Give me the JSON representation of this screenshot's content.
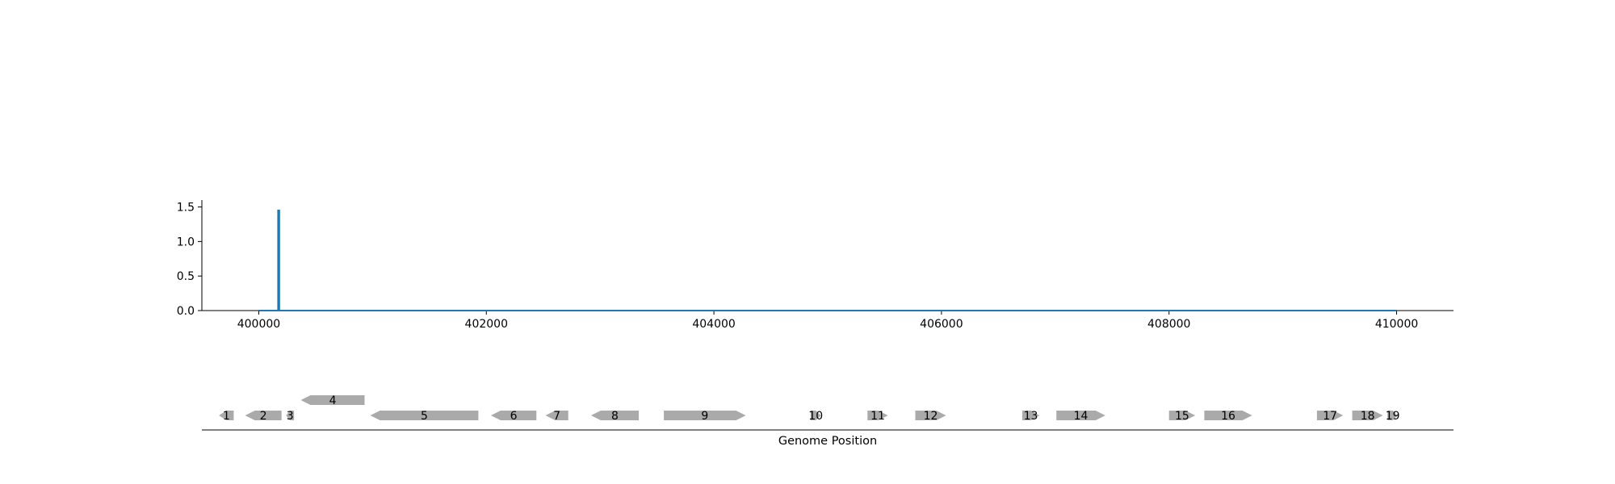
{
  "chart_data": {
    "type": "line",
    "xlim": [
      399500,
      410500
    ],
    "ylim": [
      0,
      1.6
    ],
    "x_ticks": [
      400000,
      402000,
      404000,
      406000,
      408000,
      410000
    ],
    "x_tick_labels": [
      "400000",
      "402000",
      "404000",
      "406000",
      "408000",
      "410000"
    ],
    "y_ticks": [
      0.0,
      0.5,
      1.0,
      1.5
    ],
    "y_tick_labels": [
      "0.0",
      "0.5",
      "1.0",
      "1.5"
    ],
    "series": [
      {
        "color": "#1f77b4",
        "x": [
          400000,
          400170,
          400170,
          400180,
          400180,
          410000
        ],
        "y": [
          0,
          0,
          1.45,
          1.45,
          0,
          0
        ]
      }
    ],
    "genes": [
      {
        "label": "1",
        "start": 399650,
        "end": 399780,
        "strand": "-",
        "row": 0
      },
      {
        "label": "2",
        "start": 399880,
        "end": 400200,
        "strand": "-",
        "row": 0
      },
      {
        "label": "3",
        "start": 400240,
        "end": 400310,
        "strand": "-",
        "row": 0
      },
      {
        "label": "4",
        "start": 400370,
        "end": 400930,
        "strand": "-",
        "row": 1
      },
      {
        "label": "5",
        "start": 400980,
        "end": 401930,
        "strand": "-",
        "row": 0
      },
      {
        "label": "6",
        "start": 402040,
        "end": 402440,
        "strand": "-",
        "row": 0
      },
      {
        "label": "7",
        "start": 402520,
        "end": 402720,
        "strand": "-",
        "row": 0
      },
      {
        "label": "8",
        "start": 402920,
        "end": 403340,
        "strand": "-",
        "row": 0
      },
      {
        "label": "9",
        "start": 403560,
        "end": 404280,
        "strand": "+",
        "row": 0
      },
      {
        "label": "10",
        "start": 404850,
        "end": 404940,
        "strand": "+",
        "row": 0
      },
      {
        "label": "11",
        "start": 405350,
        "end": 405530,
        "strand": "+",
        "row": 0
      },
      {
        "label": "12",
        "start": 405770,
        "end": 406040,
        "strand": "+",
        "row": 0
      },
      {
        "label": "13",
        "start": 406710,
        "end": 406860,
        "strand": "+",
        "row": 0
      },
      {
        "label": "14",
        "start": 407010,
        "end": 407440,
        "strand": "+",
        "row": 0
      },
      {
        "label": "15",
        "start": 408000,
        "end": 408230,
        "strand": "+",
        "row": 0
      },
      {
        "label": "16",
        "start": 408310,
        "end": 408730,
        "strand": "+",
        "row": 0
      },
      {
        "label": "17",
        "start": 409300,
        "end": 409530,
        "strand": "+",
        "row": 0
      },
      {
        "label": "18",
        "start": 409610,
        "end": 409880,
        "strand": "+",
        "row": 0
      },
      {
        "label": "19",
        "start": 409920,
        "end": 410010,
        "strand": "+",
        "row": 0
      }
    ],
    "gene_color": "#aaaaaa",
    "xlabel": "Genome Position"
  }
}
